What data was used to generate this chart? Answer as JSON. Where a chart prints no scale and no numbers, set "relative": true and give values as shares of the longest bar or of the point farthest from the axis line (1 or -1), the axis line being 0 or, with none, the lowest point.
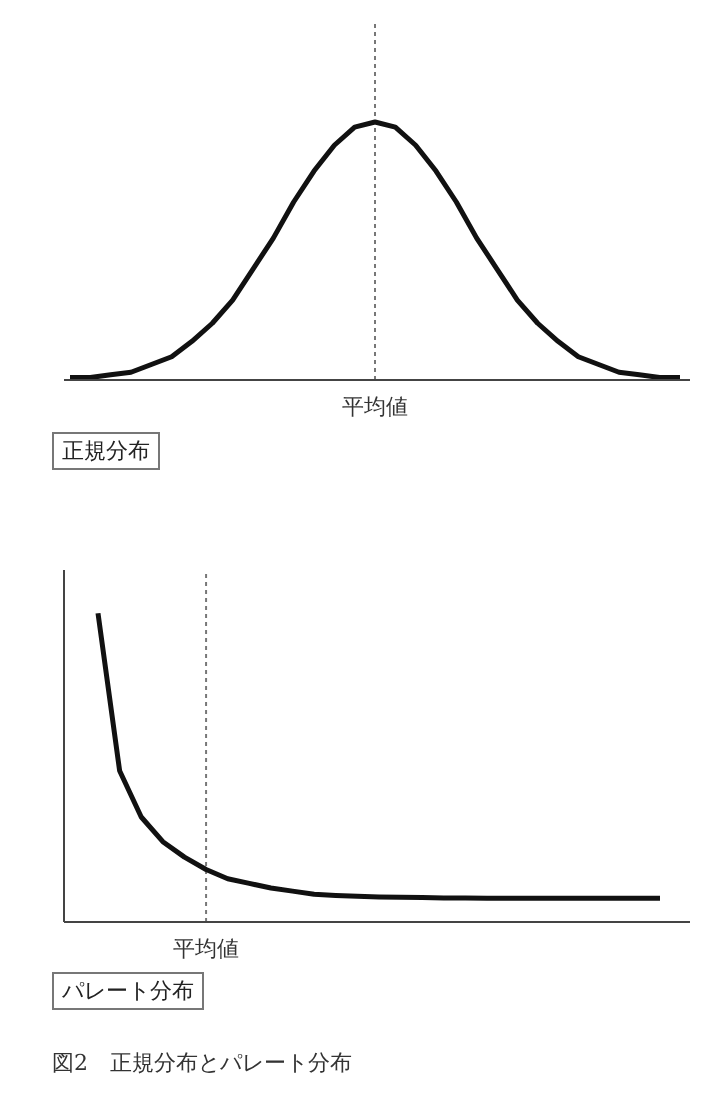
{
  "chart_data": [
    {
      "type": "line",
      "title": "正規分布",
      "relative": true,
      "legend": false,
      "grid": false,
      "marker": "none",
      "line_style": "solid",
      "categories": [
        null,
        null,
        null,
        null,
        null,
        null,
        null,
        null,
        null,
        null,
        null,
        null,
        null,
        null,
        null,
        null,
        null,
        null,
        null,
        null,
        null,
        null,
        null,
        null,
        null,
        null,
        null,
        null,
        null,
        null,
        null
      ],
      "series": [
        {
          "color": "#111111",
          "values": [
            0.01,
            0.01,
            0.02,
            0.03,
            0.06,
            0.09,
            0.15,
            0.22,
            0.31,
            0.43,
            0.55,
            0.69,
            0.81,
            0.91,
            0.98,
            1,
            0.98,
            0.91,
            0.81,
            0.69,
            0.55,
            0.43,
            0.31,
            0.22,
            0.15,
            0.09,
            0.06,
            0.03,
            0.02,
            0.01,
            0.01
          ]
        }
      ],
      "annotations": [
        "平均値"
      ]
    },
    {
      "type": "line",
      "title": "パレート分布",
      "relative": true,
      "legend": false,
      "grid": false,
      "marker": "none",
      "line_style": "solid",
      "categories": [
        null,
        null,
        null,
        null,
        null,
        null,
        null,
        null,
        null,
        null,
        null,
        null,
        null,
        null,
        null,
        null,
        null,
        null,
        null,
        null,
        null,
        null,
        null,
        null,
        null,
        null,
        null
      ],
      "series": [
        {
          "color": "#111111",
          "values": [
            1,
            0.49,
            0.34,
            0.26,
            0.21,
            0.17,
            0.14,
            0.125,
            0.11,
            0.1,
            0.09,
            0.086,
            0.083,
            0.081,
            0.08,
            0.079,
            0.078,
            0.078,
            0.077,
            0.077,
            0.077,
            0.077,
            0.077,
            0.077,
            0.077,
            0.077,
            0.077
          ]
        }
      ],
      "annotations": [
        "平均値",
        "図2　正規分布とパレート分布"
      ]
    }
  ]
}
